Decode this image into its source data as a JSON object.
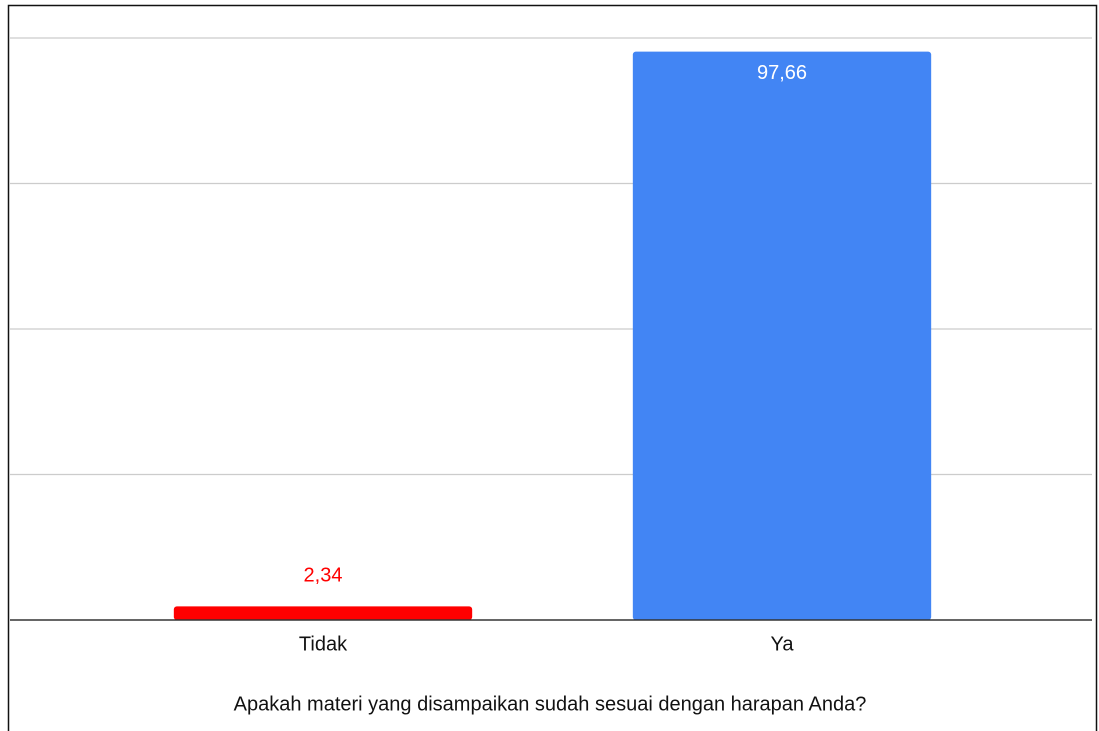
{
  "chart_data": {
    "type": "bar",
    "x_label": "Apakah materi yang disampaikan sudah sesuai dengan harapan Anda?",
    "categories": [
      "Tidak",
      "Ya"
    ],
    "values": [
      2.34,
      97.66
    ],
    "value_labels": [
      "2,34",
      "97,66"
    ],
    "colors": [
      "#ff0000",
      "#4285f4"
    ],
    "ylim": [
      0,
      100
    ],
    "yticks": [
      0,
      25,
      50,
      75,
      100
    ],
    "grid": true
  }
}
